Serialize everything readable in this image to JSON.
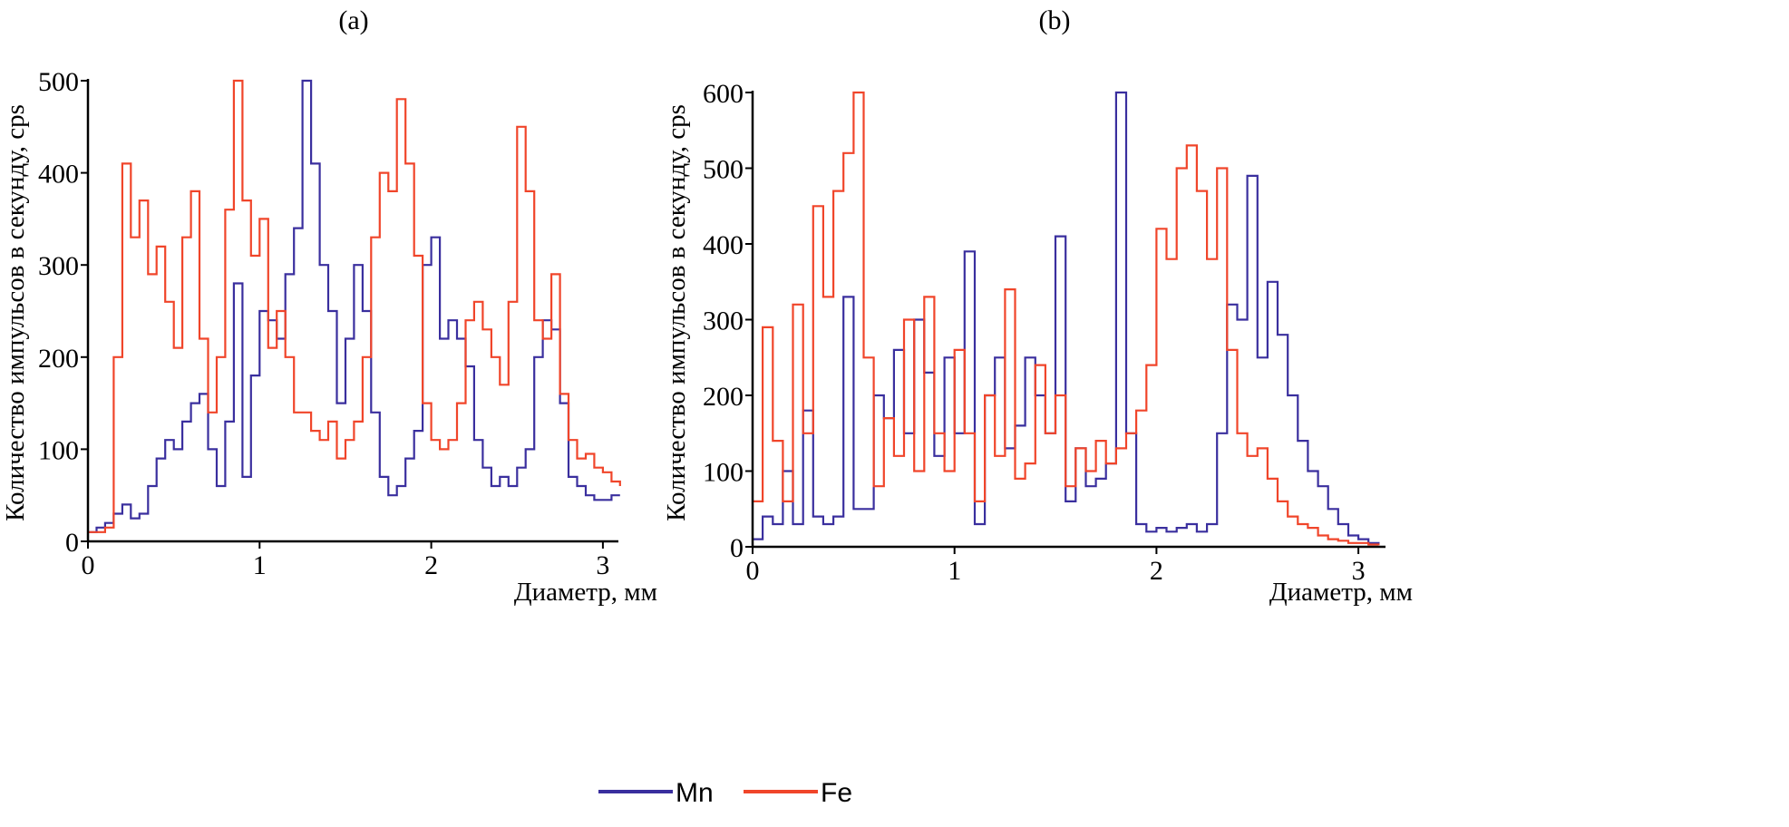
{
  "legend": [
    {
      "name": "Mn",
      "color": "#3a2f9e"
    },
    {
      "name": "Fe",
      "color": "#f0452a"
    }
  ],
  "chart_data": [
    {
      "type": "line",
      "title": "(a)",
      "xlabel": "Диаметр, мм",
      "ylabel": "Количество импульсов в секунду, cps",
      "xlim": [
        0,
        3.1
      ],
      "ylim": [
        0,
        500
      ],
      "xticks": [
        "0",
        "1",
        "2",
        "3"
      ],
      "yticks": [
        "0",
        "100",
        "200",
        "300",
        "400",
        "500"
      ],
      "x_step": 0.05,
      "series": [
        {
          "name": "Mn",
          "values": [
            10,
            15,
            20,
            30,
            40,
            25,
            30,
            60,
            90,
            110,
            100,
            130,
            150,
            160,
            100,
            60,
            130,
            280,
            70,
            180,
            250,
            240,
            220,
            290,
            340,
            500,
            410,
            300,
            250,
            150,
            220,
            300,
            250,
            140,
            70,
            50,
            60,
            90,
            120,
            300,
            330,
            220,
            240,
            220,
            190,
            110,
            80,
            60,
            70,
            60,
            80,
            100,
            200,
            240,
            230,
            150,
            70,
            60,
            50,
            45,
            45,
            50,
            50
          ]
        },
        {
          "name": "Fe",
          "values": [
            10,
            10,
            15,
            200,
            410,
            330,
            370,
            290,
            320,
            260,
            210,
            330,
            380,
            220,
            140,
            200,
            360,
            500,
            370,
            310,
            350,
            210,
            250,
            200,
            140,
            140,
            120,
            110,
            130,
            90,
            110,
            130,
            200,
            330,
            400,
            380,
            480,
            410,
            310,
            150,
            110,
            100,
            110,
            150,
            240,
            260,
            230,
            200,
            170,
            260,
            450,
            380,
            240,
            220,
            290,
            160,
            110,
            90,
            95,
            80,
            75,
            65,
            60
          ]
        }
      ]
    },
    {
      "type": "line",
      "title": "(b)",
      "xlabel": "Диаметр, мм",
      "ylabel": "Количество импульсов в секунду, cps",
      "xlim": [
        0,
        3.1
      ],
      "ylim": [
        0,
        600
      ],
      "xticks": [
        "0",
        "1",
        "2",
        "3"
      ],
      "yticks": [
        "0",
        "100",
        "200",
        "300",
        "400",
        "500",
        "600"
      ],
      "x_step": 0.05,
      "series": [
        {
          "name": "Mn",
          "values": [
            10,
            40,
            30,
            100,
            30,
            180,
            40,
            30,
            40,
            330,
            50,
            50,
            200,
            170,
            260,
            150,
            300,
            230,
            120,
            250,
            150,
            390,
            30,
            200,
            250,
            130,
            160,
            250,
            200,
            150,
            410,
            60,
            130,
            80,
            90,
            110,
            600,
            150,
            30,
            20,
            25,
            20,
            25,
            30,
            20,
            30,
            150,
            320,
            300,
            490,
            250,
            350,
            280,
            200,
            140,
            100,
            80,
            50,
            30,
            15,
            10,
            5,
            3
          ]
        },
        {
          "name": "Fe",
          "values": [
            60,
            290,
            140,
            60,
            320,
            150,
            450,
            330,
            470,
            520,
            600,
            250,
            80,
            170,
            120,
            300,
            100,
            330,
            150,
            100,
            260,
            150,
            60,
            200,
            120,
            340,
            90,
            110,
            240,
            150,
            200,
            80,
            130,
            100,
            140,
            110,
            130,
            150,
            180,
            240,
            420,
            380,
            500,
            530,
            470,
            380,
            500,
            260,
            150,
            120,
            130,
            90,
            60,
            40,
            30,
            25,
            15,
            10,
            8,
            5,
            5,
            3,
            2
          ]
        }
      ]
    }
  ]
}
